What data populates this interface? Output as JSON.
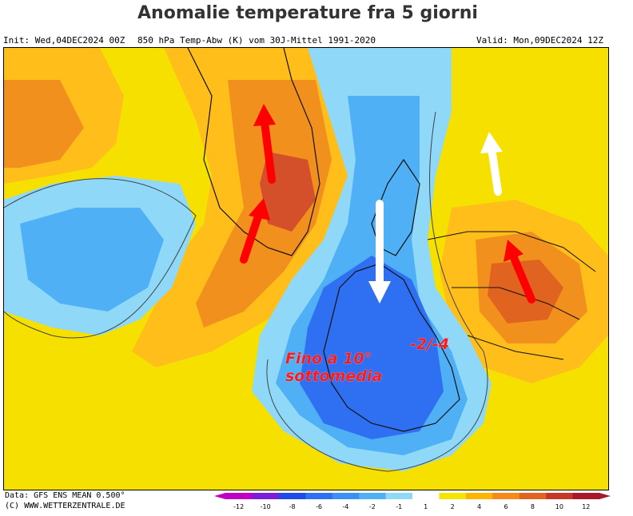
{
  "title": "Anomalie temperature fra 5 giorni",
  "header": {
    "init": "Init: Wed,04DEC2024 00Z",
    "field": "850 hPa Temp-Abw (K) vom 30J-Mittel 1991-2020",
    "valid": "Valid: Mon,09DEC2024 12Z"
  },
  "annotations": {
    "below_average_line1": "Fino a 10°",
    "below_average_line2": "sottomedia",
    "local_anomaly": "-2/-4"
  },
  "arrows": [
    {
      "id": "greenland-north",
      "color": "#ff0000",
      "direction": "up"
    },
    {
      "id": "greenland-south",
      "color": "#ff0000",
      "direction": "up-right"
    },
    {
      "id": "western-europe",
      "color": "#ffffff",
      "direction": "down"
    },
    {
      "id": "northeast",
      "color": "#ffffff",
      "direction": "up"
    },
    {
      "id": "eastern-europe",
      "color": "#ff0000",
      "direction": "up-left"
    }
  ],
  "footer": {
    "data_line": "Data: GFS ENS MEAN 0.500°",
    "source": "(C) WWW.WETTERZENTRALE.DE"
  },
  "colorbar": {
    "ticks": [
      "-12",
      "-10",
      "-8",
      "-6",
      "-4",
      "-2",
      "-1",
      "1",
      "2",
      "4",
      "6",
      "8",
      "10",
      "12"
    ],
    "colors": [
      "#c000c0",
      "#7a1fd6",
      "#1f4ae6",
      "#2f6ff2",
      "#3b8ff5",
      "#4fb0f5",
      "#8fd8f8",
      "#ffffff",
      "#f5e400",
      "#ffb400",
      "#f58a1a",
      "#e0641f",
      "#c8362a",
      "#a8182a"
    ]
  }
}
